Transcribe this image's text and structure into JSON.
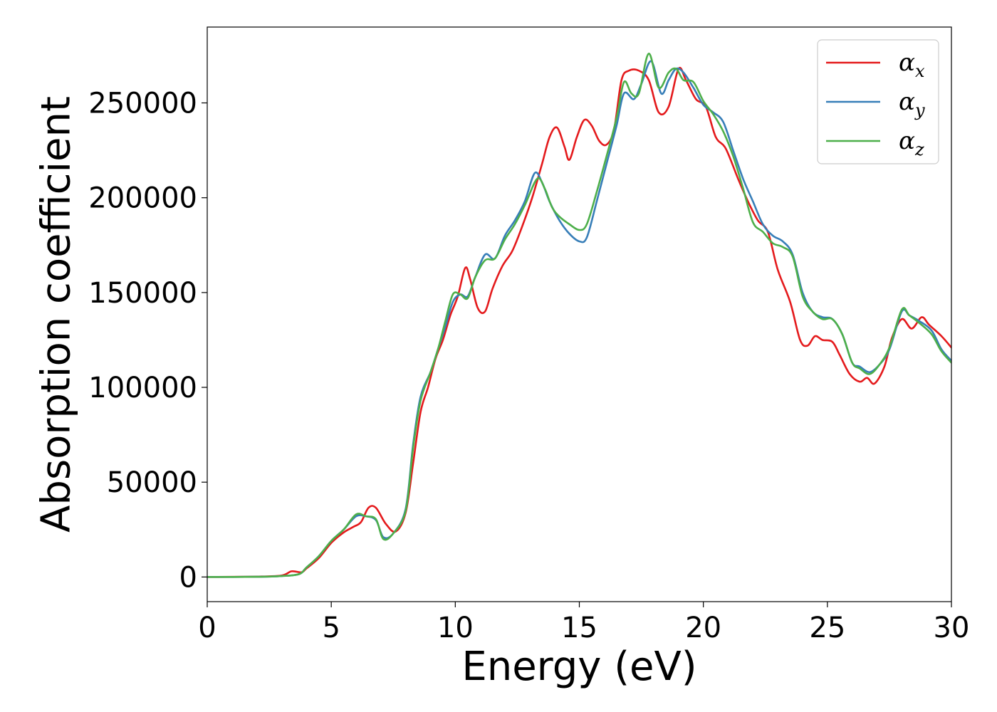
{
  "chart_data": {
    "type": "line",
    "title": "",
    "xlabel": "Energy (eV)",
    "ylabel": "Absorption coefficient",
    "xlim": [
      0,
      30
    ],
    "ylim": [
      -13000,
      290000
    ],
    "x_ticks": [
      0,
      5,
      10,
      15,
      20,
      25,
      30
    ],
    "y_ticks": [
      0,
      50000,
      100000,
      150000,
      200000,
      250000
    ],
    "grid": false,
    "legend_position": "top-right",
    "series": [
      {
        "name": "α",
        "subscript": "x",
        "color": "#e41a1c",
        "points": [
          [
            0,
            0
          ],
          [
            2,
            200
          ],
          [
            3,
            800
          ],
          [
            3.4,
            3000
          ],
          [
            3.8,
            2500
          ],
          [
            4,
            4500
          ],
          [
            4.5,
            10000
          ],
          [
            5,
            18000
          ],
          [
            5.5,
            23500
          ],
          [
            5.9,
            26500
          ],
          [
            6.2,
            29000
          ],
          [
            6.5,
            36500
          ],
          [
            6.8,
            36500
          ],
          [
            7.2,
            28000
          ],
          [
            7.6,
            24000
          ],
          [
            8,
            34000
          ],
          [
            8.3,
            60000
          ],
          [
            8.6,
            87000
          ],
          [
            8.9,
            100000
          ],
          [
            9.2,
            115000
          ],
          [
            9.5,
            125000
          ],
          [
            9.8,
            138000
          ],
          [
            10.1,
            148000
          ],
          [
            10.4,
            163000
          ],
          [
            10.6,
            157000
          ],
          [
            10.9,
            142000
          ],
          [
            11.2,
            140000
          ],
          [
            11.5,
            152000
          ],
          [
            11.9,
            164000
          ],
          [
            12.3,
            172000
          ],
          [
            12.7,
            185000
          ],
          [
            13.1,
            200000
          ],
          [
            13.5,
            218000
          ],
          [
            13.8,
            232000
          ],
          [
            14.1,
            237000
          ],
          [
            14.4,
            227000
          ],
          [
            14.6,
            220000
          ],
          [
            14.9,
            232000
          ],
          [
            15.2,
            241000
          ],
          [
            15.5,
            238000
          ],
          [
            15.8,
            230000
          ],
          [
            16.1,
            228000
          ],
          [
            16.4,
            236000
          ],
          [
            16.7,
            262000
          ],
          [
            17,
            267000
          ],
          [
            17.4,
            267000
          ],
          [
            17.8,
            262000
          ],
          [
            18.2,
            245000
          ],
          [
            18.6,
            248000
          ],
          [
            19.0,
            268000
          ],
          [
            19.3,
            262000
          ],
          [
            19.7,
            252000
          ],
          [
            20.1,
            248000
          ],
          [
            20.5,
            232000
          ],
          [
            20.9,
            226000
          ],
          [
            21.4,
            210000
          ],
          [
            21.8,
            198000
          ],
          [
            22.2,
            188000
          ],
          [
            22.6,
            182000
          ],
          [
            23,
            162000
          ],
          [
            23.5,
            145000
          ],
          [
            23.9,
            125000
          ],
          [
            24.2,
            122000
          ],
          [
            24.5,
            127000
          ],
          [
            24.8,
            125000
          ],
          [
            25.2,
            124000
          ],
          [
            25.5,
            117000
          ],
          [
            25.9,
            107000
          ],
          [
            26.3,
            103000
          ],
          [
            26.6,
            105000
          ],
          [
            26.9,
            102000
          ],
          [
            27.3,
            111000
          ],
          [
            27.6,
            126000
          ],
          [
            28,
            136000
          ],
          [
            28.4,
            131000
          ],
          [
            28.8,
            137000
          ],
          [
            29.1,
            133000
          ],
          [
            29.6,
            127000
          ],
          [
            30,
            121000
          ]
        ]
      },
      {
        "name": "α",
        "subscript": "y",
        "color": "#377eb8",
        "points": [
          [
            0,
            0
          ],
          [
            2,
            100
          ],
          [
            3,
            500
          ],
          [
            3.7,
            1500
          ],
          [
            4,
            5000
          ],
          [
            4.5,
            11000
          ],
          [
            5,
            19000
          ],
          [
            5.5,
            25000
          ],
          [
            6,
            32000
          ],
          [
            6.4,
            32000
          ],
          [
            6.8,
            30000
          ],
          [
            7.1,
            21000
          ],
          [
            7.5,
            23000
          ],
          [
            8,
            36000
          ],
          [
            8.3,
            70000
          ],
          [
            8.6,
            95000
          ],
          [
            9,
            108000
          ],
          [
            9.3,
            120000
          ],
          [
            9.6,
            132000
          ],
          [
            9.9,
            145000
          ],
          [
            10.2,
            149000
          ],
          [
            10.5,
            148000
          ],
          [
            10.8,
            158000
          ],
          [
            11.2,
            170000
          ],
          [
            11.6,
            168000
          ],
          [
            12,
            180000
          ],
          [
            12.4,
            188000
          ],
          [
            12.8,
            198000
          ],
          [
            13.2,
            213000
          ],
          [
            13.5,
            208000
          ],
          [
            13.8,
            198000
          ],
          [
            14.2,
            188000
          ],
          [
            14.6,
            181000
          ],
          [
            15,
            177000
          ],
          [
            15.3,
            179000
          ],
          [
            15.7,
            198000
          ],
          [
            16.1,
            218000
          ],
          [
            16.5,
            238000
          ],
          [
            16.8,
            255000
          ],
          [
            17.2,
            252000
          ],
          [
            17.5,
            260000
          ],
          [
            17.9,
            272000
          ],
          [
            18.3,
            255000
          ],
          [
            18.6,
            262000
          ],
          [
            18.9,
            268000
          ],
          [
            19.2,
            266000
          ],
          [
            19.6,
            258000
          ],
          [
            20,
            249000
          ],
          [
            20.4,
            245000
          ],
          [
            20.8,
            240000
          ],
          [
            21.2,
            225000
          ],
          [
            21.6,
            210000
          ],
          [
            22,
            198000
          ],
          [
            22.4,
            186000
          ],
          [
            22.8,
            180000
          ],
          [
            23.2,
            177000
          ],
          [
            23.6,
            170000
          ],
          [
            24,
            150000
          ],
          [
            24.4,
            140000
          ],
          [
            24.8,
            137000
          ],
          [
            25.2,
            136000
          ],
          [
            25.6,
            128000
          ],
          [
            26,
            113000
          ],
          [
            26.3,
            111000
          ],
          [
            26.7,
            108000
          ],
          [
            27.1,
            112000
          ],
          [
            27.5,
            120000
          ],
          [
            28,
            140000
          ],
          [
            28.3,
            138000
          ],
          [
            28.7,
            135000
          ],
          [
            29.2,
            130000
          ],
          [
            29.6,
            120000
          ],
          [
            30,
            114000
          ]
        ]
      },
      {
        "name": "α",
        "subscript": "z",
        "color": "#4daf4a",
        "points": [
          [
            0,
            0
          ],
          [
            2,
            100
          ],
          [
            3,
            500
          ],
          [
            3.7,
            1500
          ],
          [
            4,
            5000
          ],
          [
            4.5,
            11000
          ],
          [
            5,
            19000
          ],
          [
            5.5,
            25000
          ],
          [
            6,
            33000
          ],
          [
            6.4,
            32000
          ],
          [
            6.8,
            30500
          ],
          [
            7.1,
            20000
          ],
          [
            7.5,
            23000
          ],
          [
            8,
            35000
          ],
          [
            8.3,
            68000
          ],
          [
            8.6,
            93000
          ],
          [
            9,
            108000
          ],
          [
            9.3,
            120000
          ],
          [
            9.6,
            135000
          ],
          [
            9.9,
            149000
          ],
          [
            10.2,
            149000
          ],
          [
            10.5,
            147000
          ],
          [
            10.8,
            158000
          ],
          [
            11.2,
            167000
          ],
          [
            11.6,
            168000
          ],
          [
            12,
            178000
          ],
          [
            12.4,
            186000
          ],
          [
            12.8,
            196000
          ],
          [
            13.3,
            210000
          ],
          [
            13.6,
            205000
          ],
          [
            13.9,
            195000
          ],
          [
            14.2,
            190000
          ],
          [
            14.6,
            186000
          ],
          [
            15,
            183000
          ],
          [
            15.3,
            186000
          ],
          [
            15.7,
            203000
          ],
          [
            16.1,
            222000
          ],
          [
            16.5,
            242000
          ],
          [
            16.8,
            261000
          ],
          [
            17.1,
            255000
          ],
          [
            17.4,
            255000
          ],
          [
            17.8,
            276000
          ],
          [
            18.2,
            258000
          ],
          [
            18.6,
            266000
          ],
          [
            18.9,
            268000
          ],
          [
            19.2,
            262000
          ],
          [
            19.6,
            261000
          ],
          [
            20,
            251000
          ],
          [
            20.4,
            244000
          ],
          [
            20.8,
            235000
          ],
          [
            21.2,
            222000
          ],
          [
            21.6,
            205000
          ],
          [
            22,
            187000
          ],
          [
            22.4,
            182000
          ],
          [
            22.8,
            176000
          ],
          [
            23.2,
            174000
          ],
          [
            23.6,
            169000
          ],
          [
            24,
            148000
          ],
          [
            24.4,
            140000
          ],
          [
            24.8,
            136000
          ],
          [
            25.2,
            136000
          ],
          [
            25.6,
            128000
          ],
          [
            26,
            113000
          ],
          [
            26.3,
            110000
          ],
          [
            26.7,
            107000
          ],
          [
            27.1,
            112000
          ],
          [
            27.5,
            121000
          ],
          [
            28,
            141000
          ],
          [
            28.3,
            138000
          ],
          [
            28.7,
            134000
          ],
          [
            29.2,
            128000
          ],
          [
            29.6,
            119000
          ],
          [
            30,
            113000
          ]
        ]
      }
    ]
  }
}
